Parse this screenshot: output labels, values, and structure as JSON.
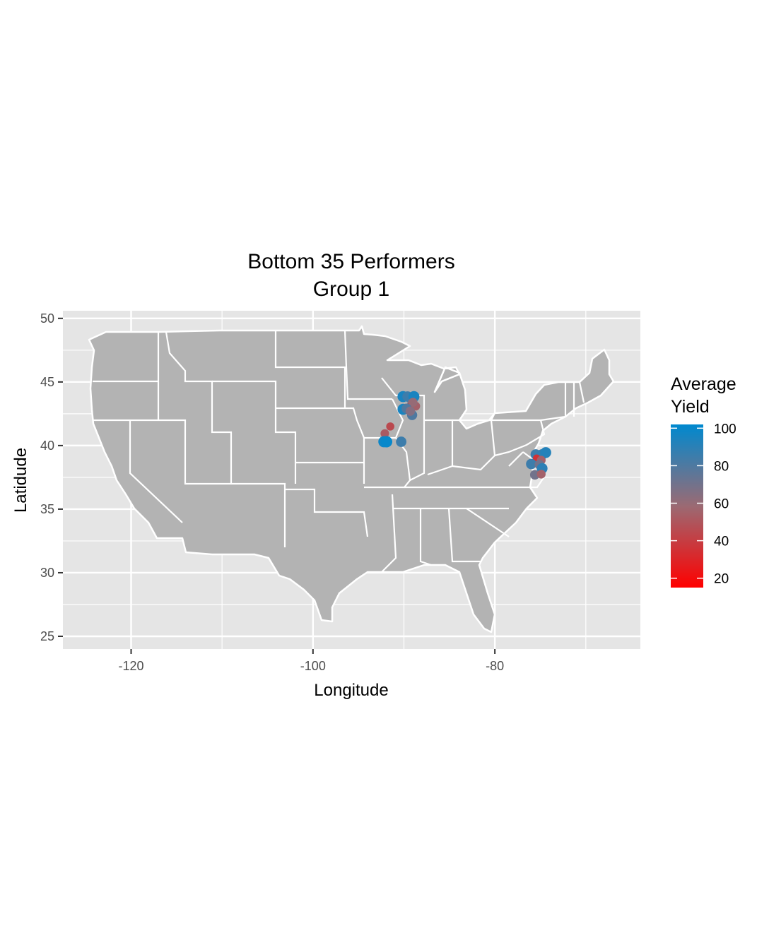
{
  "chart_data": {
    "type": "scatter",
    "title": "Bottom 35 Performers",
    "subtitle": "Group 1",
    "xlabel": "Longitude",
    "ylabel": "Latidude",
    "xlim": [
      -127.5,
      -64
    ],
    "ylim": [
      24,
      50.6
    ],
    "x_ticks": [
      -120,
      -100,
      -80
    ],
    "y_ticks": [
      25,
      30,
      35,
      40,
      45,
      50
    ],
    "x_tick_labels": [
      "-120",
      "-100",
      "-80"
    ],
    "y_tick_labels": [
      "25",
      "30",
      "35",
      "40",
      "45",
      "50"
    ],
    "grid": true,
    "basemap": "contiguous-us-state-boundaries",
    "legend": {
      "title_line1": "Average",
      "title_line2": "Yield",
      "position": "right",
      "scale_min": 15,
      "scale_max": 102,
      "ticks": [
        20,
        40,
        60,
        80,
        100
      ],
      "tick_labels": [
        "20",
        "40",
        "60",
        "80",
        "100"
      ],
      "color_low": "#ff0000",
      "color_high": "#0089cf"
    },
    "points": [
      {
        "lon": -90.1,
        "lat": 43.85,
        "yield": 95
      },
      {
        "lon": -89.6,
        "lat": 43.85,
        "yield": 85
      },
      {
        "lon": -88.9,
        "lat": 43.85,
        "yield": 95
      },
      {
        "lon": -89.1,
        "lat": 43.3,
        "yield": 70
      },
      {
        "lon": -89.4,
        "lat": 43.05,
        "yield": 22
      },
      {
        "lon": -88.7,
        "lat": 43.1,
        "yield": 55
      },
      {
        "lon": -89.0,
        "lat": 43.4,
        "yield": 60
      },
      {
        "lon": -90.1,
        "lat": 42.85,
        "yield": 95
      },
      {
        "lon": -89.7,
        "lat": 42.9,
        "yield": 80
      },
      {
        "lon": -89.1,
        "lat": 42.4,
        "yield": 80
      },
      {
        "lon": -89.3,
        "lat": 42.7,
        "yield": 65
      },
      {
        "lon": -91.5,
        "lat": 41.5,
        "yield": 45
      },
      {
        "lon": -92.1,
        "lat": 40.95,
        "yield": 52
      },
      {
        "lon": -92.2,
        "lat": 40.3,
        "yield": 98
      },
      {
        "lon": -91.9,
        "lat": 40.3,
        "yield": 100
      },
      {
        "lon": -90.3,
        "lat": 40.3,
        "yield": 85
      },
      {
        "lon": -75.5,
        "lat": 39.3,
        "yield": 85
      },
      {
        "lon": -74.8,
        "lat": 39.3,
        "yield": 88
      },
      {
        "lon": -74.4,
        "lat": 39.45,
        "yield": 92
      },
      {
        "lon": -75.4,
        "lat": 39.0,
        "yield": 35
      },
      {
        "lon": -74.9,
        "lat": 38.85,
        "yield": 55
      },
      {
        "lon": -76.0,
        "lat": 38.55,
        "yield": 85
      },
      {
        "lon": -75.1,
        "lat": 38.5,
        "yield": 70
      },
      {
        "lon": -74.8,
        "lat": 38.2,
        "yield": 90
      },
      {
        "lon": -75.6,
        "lat": 37.7,
        "yield": 70
      },
      {
        "lon": -74.9,
        "lat": 37.75,
        "yield": 55
      }
    ]
  }
}
